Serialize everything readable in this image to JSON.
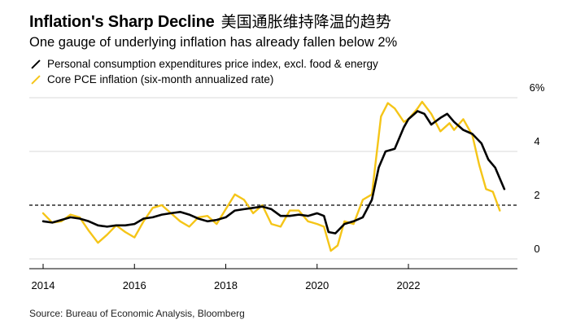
{
  "header": {
    "title": "Inflation's Sharp Decline",
    "chinese_title": "美国通胀维持降温的趋势",
    "subtitle": "One gauge of underlying inflation has already fallen below 2%"
  },
  "legend": [
    {
      "label": "Personal consumption expenditures price index, excl. food & energy",
      "color": "#000000"
    },
    {
      "label": "Core PCE inflation (six-month annualized rate)",
      "color": "#f5c518"
    }
  ],
  "source": "Source: Bureau of Economic Analysis, Bloomberg",
  "colors": {
    "pce": "#000000",
    "six_month": "#f5c518",
    "grid": "#d9d9d9",
    "reference_line": "#000000"
  },
  "chart_data": {
    "type": "line",
    "title": "Inflation's Sharp Decline",
    "subtitle": "One gauge of underlying inflation has already fallen below 2%",
    "xlabel": "",
    "ylabel": "",
    "xlim": [
      2014.0,
      2024.2
    ],
    "ylim": [
      0,
      6
    ],
    "x_ticks": [
      2014,
      2016,
      2018,
      2020,
      2022
    ],
    "x_tick_labels": [
      "2014",
      "2016",
      "2018",
      "2020",
      "2022"
    ],
    "y_ticks": [
      0,
      2,
      4,
      6
    ],
    "y_tick_labels": [
      "0",
      "2",
      "4",
      "6%"
    ],
    "y_axis_side": "right",
    "reference_line": {
      "y": 2,
      "style": "dashed"
    },
    "grid": true,
    "series": [
      {
        "name": "Personal consumption expenditures price index, excl. food & energy",
        "color": "#000000",
        "points": [
          [
            2014.0,
            1.4
          ],
          [
            2014.2,
            1.35
          ],
          [
            2014.4,
            1.45
          ],
          [
            2014.6,
            1.55
          ],
          [
            2014.8,
            1.5
          ],
          [
            2015.0,
            1.4
          ],
          [
            2015.2,
            1.25
          ],
          [
            2015.4,
            1.2
          ],
          [
            2015.6,
            1.25
          ],
          [
            2015.8,
            1.25
          ],
          [
            2016.0,
            1.3
          ],
          [
            2016.2,
            1.5
          ],
          [
            2016.4,
            1.55
          ],
          [
            2016.6,
            1.65
          ],
          [
            2016.8,
            1.7
          ],
          [
            2017.0,
            1.75
          ],
          [
            2017.2,
            1.65
          ],
          [
            2017.4,
            1.5
          ],
          [
            2017.6,
            1.4
          ],
          [
            2017.8,
            1.45
          ],
          [
            2018.0,
            1.55
          ],
          [
            2018.2,
            1.8
          ],
          [
            2018.4,
            1.85
          ],
          [
            2018.6,
            1.9
          ],
          [
            2018.8,
            1.95
          ],
          [
            2019.0,
            1.85
          ],
          [
            2019.2,
            1.6
          ],
          [
            2019.4,
            1.6
          ],
          [
            2019.6,
            1.65
          ],
          [
            2019.8,
            1.6
          ],
          [
            2020.0,
            1.7
          ],
          [
            2020.15,
            1.6
          ],
          [
            2020.25,
            1.0
          ],
          [
            2020.4,
            0.95
          ],
          [
            2020.6,
            1.3
          ],
          [
            2020.8,
            1.4
          ],
          [
            2021.0,
            1.55
          ],
          [
            2021.2,
            2.2
          ],
          [
            2021.35,
            3.4
          ],
          [
            2021.5,
            4.0
          ],
          [
            2021.7,
            4.1
          ],
          [
            2021.9,
            4.9
          ],
          [
            2022.0,
            5.2
          ],
          [
            2022.2,
            5.5
          ],
          [
            2022.35,
            5.4
          ],
          [
            2022.5,
            5.0
          ],
          [
            2022.7,
            5.25
          ],
          [
            2022.85,
            5.4
          ],
          [
            2023.0,
            5.1
          ],
          [
            2023.2,
            4.8
          ],
          [
            2023.4,
            4.65
          ],
          [
            2023.6,
            4.3
          ],
          [
            2023.75,
            3.7
          ],
          [
            2023.9,
            3.4
          ],
          [
            2024.1,
            2.6
          ]
        ]
      },
      {
        "name": "Core PCE inflation (six-month annualized rate)",
        "color": "#f5c518",
        "points": [
          [
            2014.0,
            1.7
          ],
          [
            2014.2,
            1.35
          ],
          [
            2014.4,
            1.4
          ],
          [
            2014.6,
            1.65
          ],
          [
            2014.8,
            1.55
          ],
          [
            2015.0,
            1.05
          ],
          [
            2015.2,
            0.6
          ],
          [
            2015.4,
            0.9
          ],
          [
            2015.6,
            1.25
          ],
          [
            2015.8,
            1.0
          ],
          [
            2016.0,
            0.8
          ],
          [
            2016.2,
            1.4
          ],
          [
            2016.4,
            1.9
          ],
          [
            2016.6,
            2.0
          ],
          [
            2016.8,
            1.7
          ],
          [
            2017.0,
            1.4
          ],
          [
            2017.2,
            1.2
          ],
          [
            2017.4,
            1.55
          ],
          [
            2017.6,
            1.6
          ],
          [
            2017.8,
            1.3
          ],
          [
            2018.0,
            1.85
          ],
          [
            2018.2,
            2.4
          ],
          [
            2018.4,
            2.2
          ],
          [
            2018.6,
            1.7
          ],
          [
            2018.8,
            2.0
          ],
          [
            2019.0,
            1.3
          ],
          [
            2019.2,
            1.2
          ],
          [
            2019.4,
            1.8
          ],
          [
            2019.6,
            1.8
          ],
          [
            2019.8,
            1.4
          ],
          [
            2020.0,
            1.3
          ],
          [
            2020.15,
            1.2
          ],
          [
            2020.3,
            0.3
          ],
          [
            2020.45,
            0.5
          ],
          [
            2020.6,
            1.4
          ],
          [
            2020.8,
            1.3
          ],
          [
            2021.0,
            2.2
          ],
          [
            2021.2,
            2.4
          ],
          [
            2021.4,
            5.3
          ],
          [
            2021.55,
            5.8
          ],
          [
            2021.7,
            5.6
          ],
          [
            2021.9,
            5.1
          ],
          [
            2022.0,
            5.2
          ],
          [
            2022.2,
            5.6
          ],
          [
            2022.3,
            5.85
          ],
          [
            2022.5,
            5.4
          ],
          [
            2022.7,
            4.75
          ],
          [
            2022.9,
            5.05
          ],
          [
            2023.0,
            4.8
          ],
          [
            2023.2,
            5.2
          ],
          [
            2023.4,
            4.6
          ],
          [
            2023.55,
            3.5
          ],
          [
            2023.7,
            2.6
          ],
          [
            2023.85,
            2.5
          ],
          [
            2024.0,
            1.8
          ]
        ]
      }
    ]
  }
}
